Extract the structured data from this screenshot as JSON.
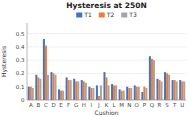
{
  "chart_data": {
    "type": "bar",
    "title": "Hysteresis at 250N",
    "xlabel": "Cushion",
    "ylabel": "Hysteresis",
    "categories": [
      "A",
      "B",
      "C",
      "D",
      "E",
      "F",
      "G",
      "H",
      "I",
      "J",
      "K",
      "L",
      "M",
      "N",
      "O",
      "P",
      "Q",
      "R",
      "S",
      "T",
      "U"
    ],
    "series": [
      {
        "name": "T1",
        "color": "#4472c4",
        "values": [
          0.1,
          0.19,
          0.46,
          0.21,
          0.08,
          0.17,
          0.16,
          0.15,
          0.1,
          0.11,
          0.21,
          0.12,
          0.08,
          0.1,
          0.11,
          0.06,
          0.33,
          0.16,
          0.21,
          0.15,
          0.15
        ]
      },
      {
        "name": "T2",
        "color": "#ed7d31",
        "values": [
          0.1,
          0.17,
          0.41,
          0.2,
          0.07,
          0.15,
          0.14,
          0.14,
          0.09,
          0.03,
          0.17,
          0.11,
          0.07,
          0.09,
          0.1,
          0.1,
          0.31,
          0.15,
          0.2,
          0.15,
          0.14
        ]
      },
      {
        "name": "T3",
        "color": "#a5a5a5",
        "values": [
          0.09,
          0.16,
          0.19,
          0.19,
          0.07,
          0.15,
          0.14,
          0.13,
          0.09,
          0.11,
          0.11,
          0.11,
          0.07,
          0.09,
          0.1,
          0.09,
          0.3,
          0.14,
          0.19,
          0.14,
          0.14
        ]
      }
    ],
    "ylim": [
      0,
      0.58
    ],
    "yticks": [
      0,
      0.1,
      0.2,
      0.3,
      0.4,
      0.5
    ],
    "grid": true,
    "legend": "top"
  }
}
